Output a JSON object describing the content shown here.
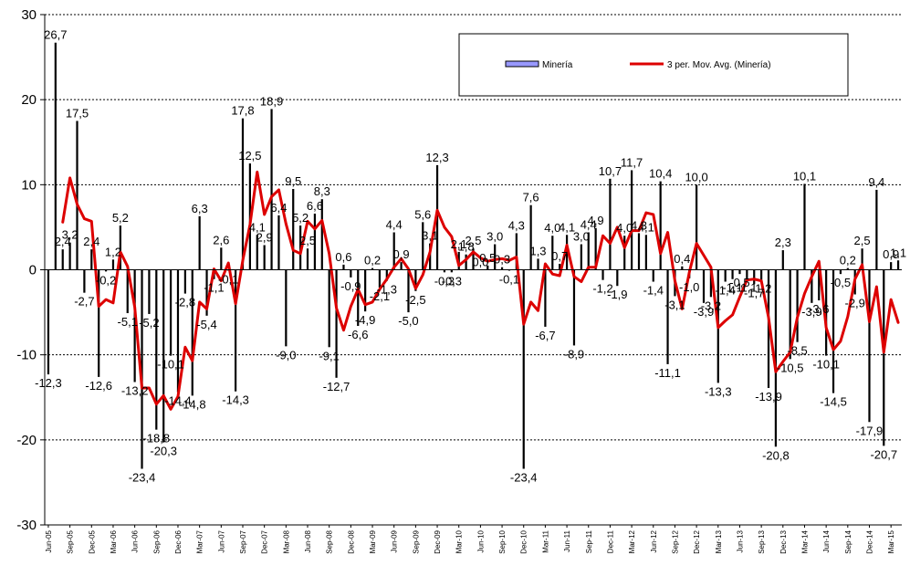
{
  "chart_data": {
    "type": "bar",
    "title": "",
    "xlabel": "",
    "ylabel": "",
    "ylim": [
      -30,
      30
    ],
    "yticks": [
      "-30",
      "-20",
      "-10",
      "0",
      "10",
      "20",
      "30"
    ],
    "grid": true,
    "legend_position": "top-right",
    "colors": {
      "bars": "#000000",
      "line": "#dd0000",
      "legend_bar_fill": "#9999ff",
      "background": "#ffffff",
      "grid": "#000000"
    },
    "x_tick_labels": [
      "Jun-05",
      "Sep-05",
      "Dec-05",
      "Mar-06",
      "Jun-06",
      "Sep-06",
      "Dec-06",
      "Mar-07",
      "Jun-07",
      "Sep-07",
      "Dec-07",
      "Mar-08",
      "Jun-08",
      "Sep-08",
      "Dec-08",
      "Mar-09",
      "Jun-09",
      "Sep-09",
      "Dec-09",
      "Mar-10",
      "Jun-10",
      "Sep-10",
      "Dec-10",
      "Mar-11",
      "Jun-11",
      "Sep-11",
      "Dec-11",
      "Mar-12",
      "Jun-12",
      "Sep-12",
      "Dec-12",
      "Mar-13",
      "Jun-13",
      "Sep-13",
      "Dec-13",
      "Mar-14",
      "Jun-14",
      "Sep-14",
      "Dec-14",
      "Mar-15"
    ],
    "series": [
      {
        "name": "Minería",
        "kind": "bar",
        "values": [
          -12.3,
          26.7,
          2.4,
          3.2,
          17.5,
          -2.7,
          2.4,
          -12.6,
          -0.2,
          1.2,
          5.2,
          -5.1,
          -13.2,
          -23.4,
          -5.2,
          -18.8,
          -20.3,
          -10.1,
          -14.4,
          -2.8,
          -14.8,
          6.3,
          -5.4,
          -1.1,
          2.6,
          -0.1,
          -14.3,
          17.8,
          12.5,
          4.1,
          2.9,
          18.9,
          6.4,
          -9.0,
          9.5,
          5.2,
          2.5,
          6.6,
          8.3,
          -9.1,
          -12.7,
          0.6,
          -0.9,
          -6.6,
          -4.9,
          0.2,
          -2.1,
          -1.3,
          4.4,
          0.9,
          -5.0,
          -2.5,
          5.6,
          3.1,
          12.3,
          -0.3,
          -0.3,
          2.1,
          1.8,
          2.5,
          0.0,
          0.5,
          3.0,
          0.3,
          -0.1,
          4.3,
          -23.4,
          7.6,
          1.3,
          -6.7,
          4.0,
          0.7,
          4.1,
          -8.9,
          3.0,
          4.4,
          4.9,
          -1.2,
          10.7,
          -1.9,
          4.0,
          11.7,
          4.3,
          4.1,
          -1.4,
          10.4,
          -11.1,
          -3.1,
          0.4,
          -1.0,
          10.0,
          -3.9,
          -3.2,
          -13.3,
          -1.4,
          -1.1,
          -0.5,
          -1.1,
          -1.7,
          -1.2,
          -13.9,
          -20.8,
          2.3,
          -10.5,
          -8.5,
          10.1,
          -3.9,
          -3.6,
          -10.1,
          -14.5,
          -0.5,
          0.2,
          -2.9,
          2.5,
          -17.9,
          9.4,
          -20.7,
          0.9,
          1.1
        ],
        "labels": [
          "-12,3",
          "26,7",
          "2,4",
          "3,2",
          "17,5",
          "-2,7",
          "2,4",
          "-12,6",
          "-0,2",
          "1,2",
          "5,2",
          "-5,1",
          "-13,2",
          "-23,4",
          "-5,2",
          "-18,8",
          "-20,3",
          "-10,1",
          "-14,4",
          "-2,8",
          "-14,8",
          "6,3",
          "-5,4",
          "-1,1",
          "2,6",
          "-0,1",
          "-14,3",
          "17,8",
          "12,5",
          "4,1",
          "2,9",
          "18,9",
          "6,4",
          "-9,0",
          "9,5",
          "5,2",
          "2,5",
          "6,6",
          "8,3",
          "-9,1",
          "-12,7",
          "0,6",
          "-0,9",
          "-6,6",
          "-4,9",
          "0,2",
          "-2,1",
          "-1,3",
          "4,4",
          "0,9",
          "-5,0",
          "-2,5",
          "5,6",
          "3,1",
          "12,3",
          "-0,3",
          "-0,3",
          "2,1",
          "1,8",
          "2,5",
          "0,0",
          "0,5",
          "3,0",
          "0,3",
          "-0,1",
          "4,3",
          "-23,4",
          "7,6",
          "1,3",
          "-6,7",
          "4,0",
          "0,7",
          "4,1",
          "-8,9",
          "3,0",
          "4,4",
          "4,9",
          "-1,2",
          "10,7",
          "-1,9",
          "4,0",
          "11,7",
          "4,3",
          "4,1",
          "-1,4",
          "10,4",
          "-11,1",
          "-3,1",
          "0,4",
          "-1,0",
          "10,0",
          "-3,9",
          "-3,2",
          "-13,3",
          "-1,4",
          "-1,1",
          "-0,5",
          "-1,1",
          "-1,7",
          "-1,2",
          "-13,9",
          "-20,8",
          "2,3",
          "-10,5",
          "-8,5",
          "10,1",
          "-3,9",
          "-3,6",
          "-10,1",
          "-14,5",
          "-0,5",
          "0,2",
          "-2,9",
          "2,5",
          "-17,9",
          "9,4",
          "-20,7",
          "0,9",
          "1,1"
        ]
      },
      {
        "name": "3 per. Mov. Avg. (Minería)",
        "kind": "line",
        "values": [
          null,
          null,
          5.6,
          10.8,
          7.7,
          6.0,
          5.7,
          -4.3,
          -3.5,
          -3.9,
          2.1,
          0.4,
          -4.4,
          -13.9,
          -13.9,
          -15.8,
          -14.8,
          -16.4,
          -14.9,
          -9.1,
          -10.7,
          -3.8,
          -4.6,
          0.1,
          -1.3,
          0.8,
          -4.0,
          1.1,
          5.3,
          11.5,
          6.5,
          8.6,
          9.4,
          5.4,
          2.3,
          1.9,
          5.7,
          4.8,
          5.8,
          1.9,
          -4.5,
          -7.1,
          -4.3,
          -2.3,
          -4.1,
          -3.8,
          -2.3,
          -1.1,
          0.3,
          1.3,
          0.1,
          -2.2,
          -0.6,
          2.1,
          7.0,
          5.0,
          3.9,
          0.5,
          1.2,
          2.1,
          1.4,
          1.0,
          1.2,
          1.3,
          1.1,
          1.5,
          -6.4,
          -3.8,
          -4.8,
          0.7,
          -0.5,
          -0.7,
          2.9,
          -0.8,
          -1.4,
          0.3,
          0.3,
          4.0,
          3.1,
          5.0,
          2.6,
          4.6,
          4.6,
          6.7,
          6.5,
          1.9,
          4.4,
          -1.3,
          -4.6,
          -0.3,
          3.1,
          1.7,
          0.3,
          -6.8,
          -6.0,
          -5.3,
          -3.2,
          -1.2,
          -1.1,
          -1.3,
          -5.6,
          -12.0,
          -10.8,
          -9.7,
          -5.6,
          -2.8,
          -0.8,
          1.0,
          -6.8,
          -9.4,
          -8.4,
          -5.5,
          -1.1,
          0.6,
          -6.1,
          -2.0,
          -9.7,
          -3.5,
          -6.2
        ]
      }
    ]
  },
  "legend": {
    "items": [
      {
        "label": "Minería"
      },
      {
        "label": "3 per. Mov. Avg. (Minería)"
      }
    ]
  }
}
